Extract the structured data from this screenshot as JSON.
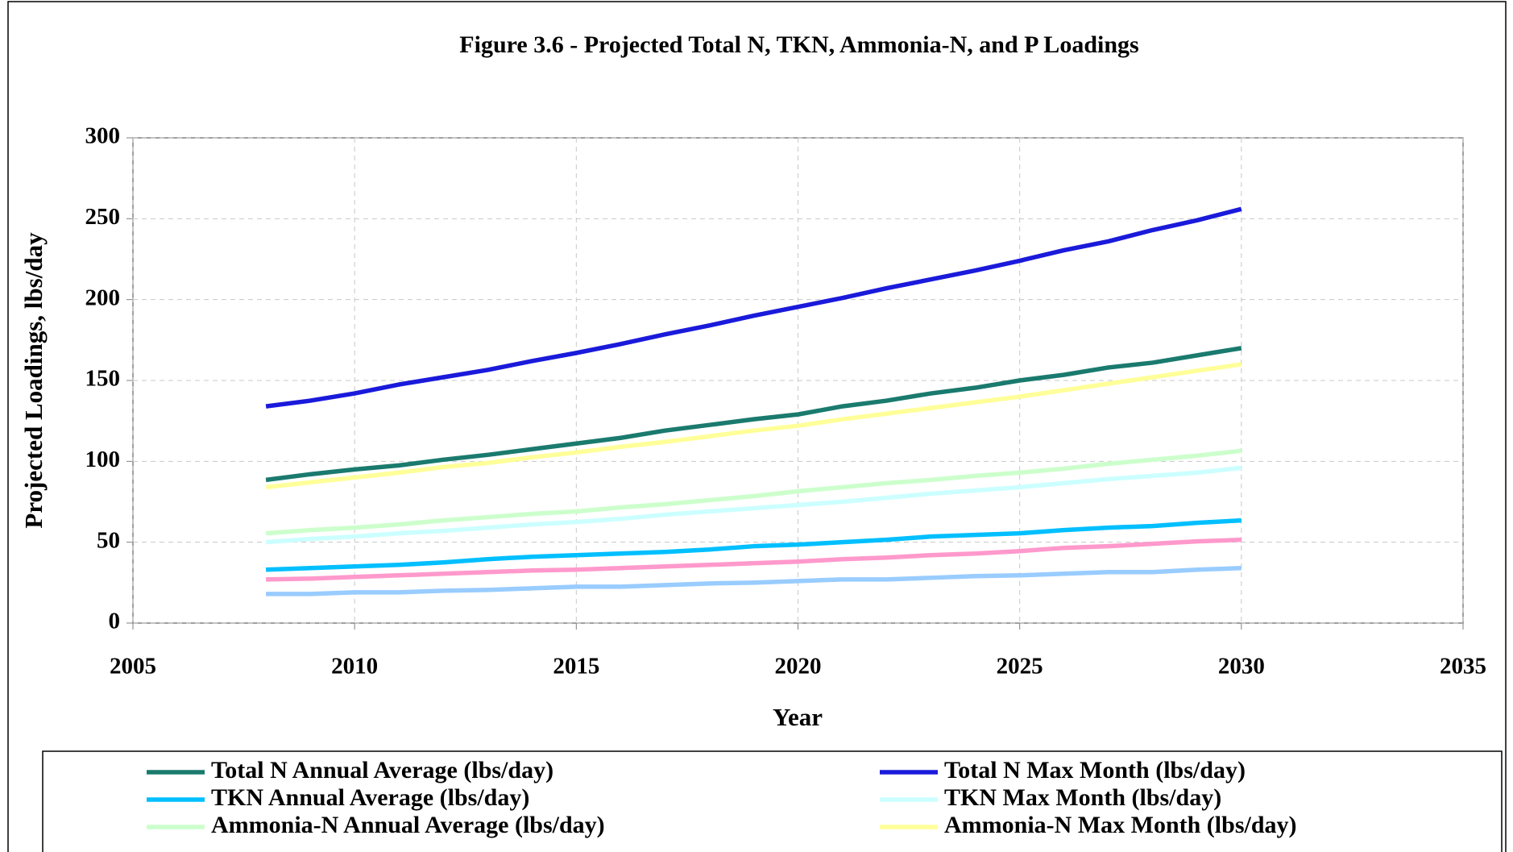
{
  "chart_data": {
    "type": "line",
    "title": "Figure 3.6 - Projected Total N, TKN, Ammonia-N,  and P Loadings",
    "xlabel": "Year",
    "ylabel": "Projected Loadings, lbs/day",
    "x": [
      2008,
      2009,
      2010,
      2011,
      2012,
      2013,
      2014,
      2015,
      2016,
      2017,
      2018,
      2019,
      2020,
      2021,
      2022,
      2023,
      2024,
      2025,
      2026,
      2027,
      2028,
      2029,
      2030
    ],
    "xlim": [
      2005,
      2035
    ],
    "xticks": [
      2005,
      2010,
      2015,
      2020,
      2025,
      2030,
      2035
    ],
    "ylim": [
      0,
      300
    ],
    "yticks": [
      0,
      50,
      100,
      150,
      200,
      250,
      300
    ],
    "grid": true,
    "legend": "bottom",
    "series": [
      {
        "name": "Total N Annual Average (lbs/day)",
        "color": "#1a7a6e",
        "values": [
          88.5,
          92,
          95,
          97.5,
          101,
          104,
          107.5,
          111,
          114.5,
          119,
          122.5,
          126,
          129,
          134,
          137.5,
          142,
          145.5,
          150,
          153.5,
          158,
          161,
          165.5,
          170
        ]
      },
      {
        "name": "Total N Max Month (lbs/day)",
        "color": "#1a1adb",
        "values": [
          134,
          137.5,
          142,
          147.5,
          152,
          156.5,
          162,
          167,
          172.5,
          178.5,
          184,
          190,
          195.5,
          201,
          207,
          212.5,
          218,
          224,
          230.5,
          236,
          243,
          249,
          256
        ]
      },
      {
        "name": "TKN Annual Average (lbs/day)",
        "color": "#00bfff",
        "values": [
          33,
          34,
          35,
          36,
          37.5,
          39.5,
          41,
          42,
          43,
          44,
          45.5,
          47.5,
          48.5,
          50,
          51.5,
          53.5,
          54.5,
          55.5,
          57.5,
          59,
          60,
          62,
          63.5
        ]
      },
      {
        "name": "TKN Max Month (lbs/day)",
        "color": "#ccffff",
        "values": [
          50,
          52,
          53.5,
          55.5,
          57,
          59,
          61,
          62.5,
          64.5,
          67,
          69,
          71,
          73,
          75,
          77.5,
          80,
          82,
          84,
          86.5,
          89,
          91,
          93,
          96
        ]
      },
      {
        "name": "Ammonia-N Annual Average (lbs/day)",
        "color": "#ccffcc",
        "values": [
          55.5,
          57.5,
          59,
          61,
          63.5,
          65.5,
          67.5,
          69,
          71.5,
          73.5,
          76,
          78.5,
          81.5,
          84,
          86.5,
          88.5,
          91,
          93,
          95.5,
          98.5,
          101,
          103.5,
          106.5
        ]
      },
      {
        "name": "Ammonia-N Max Month (lbs/day)",
        "color": "#ffff99",
        "values": [
          84,
          87,
          90,
          93,
          96.5,
          99,
          102.5,
          105.5,
          109,
          112,
          115.5,
          119,
          122,
          126,
          129.5,
          133,
          136.5,
          140,
          144,
          148,
          152,
          156,
          160
        ]
      },
      {
        "color": "#ff99cc",
        "values": [
          27,
          27.5,
          28.5,
          29.5,
          30.5,
          31.5,
          32.5,
          33,
          34,
          35,
          36,
          37,
          38,
          39.5,
          40.5,
          42,
          43,
          44.5,
          46.5,
          47.5,
          49,
          50.5,
          51.5
        ]
      },
      {
        "color": "#99ccff",
        "values": [
          18,
          18,
          19,
          19,
          20,
          20.5,
          21.5,
          22.5,
          22.5,
          23.5,
          24.5,
          25,
          26,
          27,
          27,
          28,
          29,
          29.5,
          30.5,
          31.5,
          31.5,
          33,
          34
        ]
      }
    ]
  }
}
